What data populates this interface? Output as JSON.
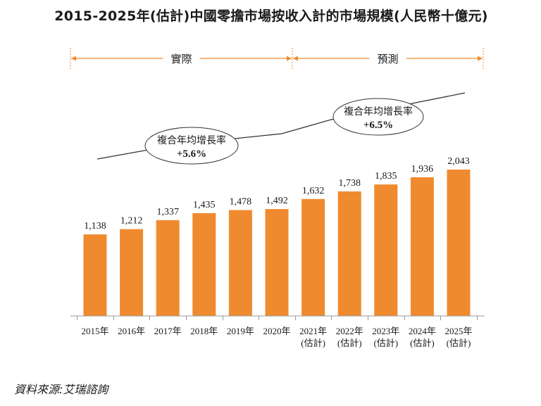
{
  "chart_data": {
    "type": "bar",
    "title": "2015-2025年(估計)中國零擔市場按收入計的市場規模(人民幣十億元)",
    "categories": [
      [
        "2015年"
      ],
      [
        "2016年"
      ],
      [
        "2017年"
      ],
      [
        "2018年"
      ],
      [
        "2019年"
      ],
      [
        "2020年"
      ],
      [
        "2021年",
        "(估計)"
      ],
      [
        "2022年",
        "(估計)"
      ],
      [
        "2023年",
        "(估計)"
      ],
      [
        "2024年",
        "(估計)"
      ],
      [
        "2025年",
        "(估計)"
      ]
    ],
    "values": [
      1138,
      1212,
      1337,
      1435,
      1478,
      1492,
      1632,
      1738,
      1835,
      1936,
      2043
    ],
    "value_labels": [
      "1,138",
      "1,212",
      "1,337",
      "1,435",
      "1,478",
      "1,492",
      "1,632",
      "1,738",
      "1,835",
      "1,936",
      "2,043"
    ],
    "bar_color": "#F08A2F",
    "axis_color": "#999999",
    "ylim": [
      0,
      2100
    ],
    "periods": [
      {
        "label": "實際",
        "from": "2015年",
        "to": "2020年"
      },
      {
        "label": "預測",
        "from": "2021年",
        "to": "2025年"
      }
    ],
    "cagr_annotations": [
      {
        "label": "複合年均增長率",
        "value": "+5.6%",
        "period": "2015-2020"
      },
      {
        "label": "複合年均增長率",
        "value": "+6.5%",
        "period": "2020-2025"
      }
    ],
    "arrow_color": "#F08A2F"
  },
  "source": "資料來源:艾瑞諮詢"
}
